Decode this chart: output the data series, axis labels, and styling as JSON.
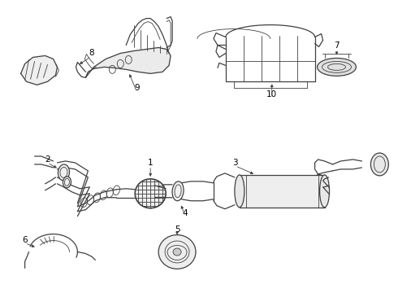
{
  "background_color": "#ffffff",
  "line_color": "#404040",
  "label_color": "#000000",
  "figsize": [
    4.9,
    3.6
  ],
  "dpi": 100
}
